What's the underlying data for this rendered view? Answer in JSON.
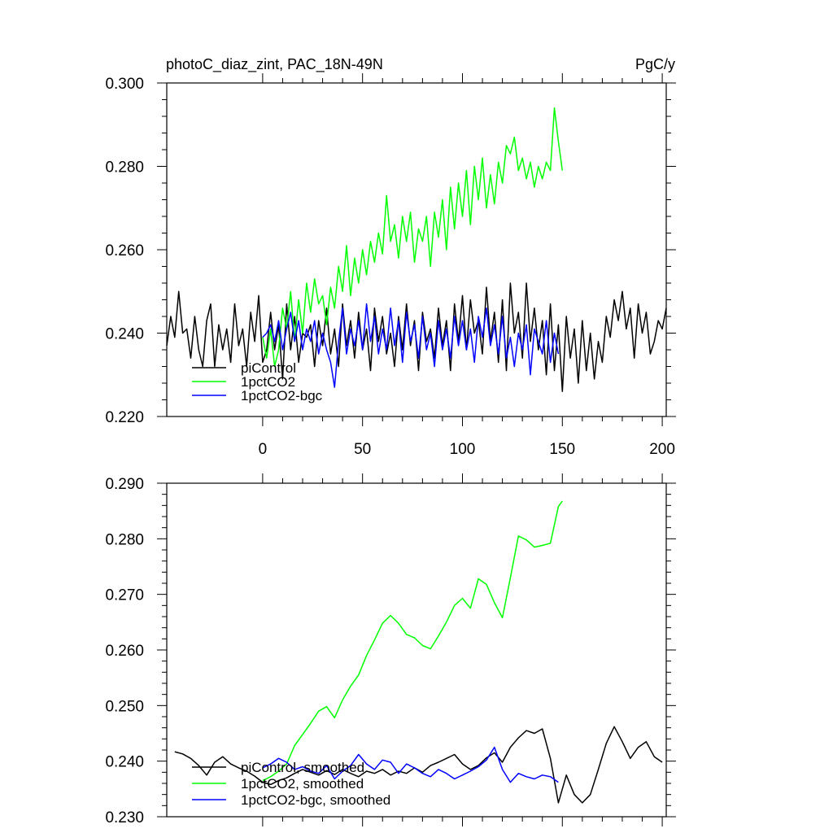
{
  "chart_data": [
    {
      "type": "line",
      "title": "photoC_diaz_zint, PAC_18N-49N",
      "units": "PgC/y",
      "xlim": [
        -48,
        202
      ],
      "ylim": [
        0.22,
        0.3
      ],
      "xticks": [
        0,
        50,
        100,
        150,
        200
      ],
      "xtick_labels": [
        "0",
        "50",
        "100",
        "150",
        "200"
      ],
      "yticks": [
        0.22,
        0.24,
        0.26,
        0.28,
        0.3
      ],
      "ytick_labels": [
        "0.220",
        "0.240",
        "0.260",
        "0.280",
        "0.300"
      ],
      "legend_position": "bottom-left",
      "series": [
        {
          "name": "piControl",
          "color": "#000000",
          "x": [
            -48,
            -46,
            -44,
            -42,
            -40,
            -38,
            -36,
            -34,
            -32,
            -30,
            -28,
            -26,
            -24,
            -22,
            -20,
            -18,
            -16,
            -14,
            -12,
            -10,
            -8,
            -6,
            -4,
            -2,
            0,
            2,
            4,
            6,
            8,
            10,
            12,
            14,
            16,
            18,
            20,
            22,
            24,
            26,
            28,
            30,
            32,
            34,
            36,
            38,
            40,
            42,
            44,
            46,
            48,
            50,
            52,
            54,
            56,
            58,
            60,
            62,
            64,
            66,
            68,
            70,
            72,
            74,
            76,
            78,
            80,
            82,
            84,
            86,
            88,
            90,
            92,
            94,
            96,
            98,
            100,
            102,
            104,
            106,
            108,
            110,
            112,
            114,
            116,
            118,
            120,
            122,
            124,
            126,
            128,
            130,
            132,
            134,
            136,
            138,
            140,
            142,
            144,
            146,
            148,
            150,
            152,
            154,
            156,
            158,
            160,
            162,
            164,
            166,
            168,
            170,
            172,
            174,
            176,
            178,
            180,
            182,
            184,
            186,
            188,
            190,
            192,
            194,
            196,
            198,
            200,
            202
          ],
          "y": [
            0.237,
            0.244,
            0.239,
            0.25,
            0.24,
            0.241,
            0.234,
            0.244,
            0.236,
            0.232,
            0.243,
            0.247,
            0.232,
            0.242,
            0.236,
            0.241,
            0.233,
            0.247,
            0.237,
            0.241,
            0.232,
            0.245,
            0.238,
            0.249,
            0.233,
            0.236,
            0.245,
            0.236,
            0.242,
            0.229,
            0.247,
            0.236,
            0.244,
            0.233,
            0.24,
            0.239,
            0.242,
            0.232,
            0.243,
            0.237,
            0.246,
            0.235,
            0.241,
            0.232,
            0.247,
            0.237,
            0.243,
            0.234,
            0.245,
            0.236,
            0.241,
            0.231,
            0.246,
            0.238,
            0.244,
            0.235,
            0.24,
            0.232,
            0.244,
            0.236,
            0.247,
            0.237,
            0.243,
            0.231,
            0.245,
            0.238,
            0.241,
            0.234,
            0.246,
            0.237,
            0.243,
            0.231,
            0.247,
            0.238,
            0.249,
            0.236,
            0.248,
            0.24,
            0.243,
            0.235,
            0.251,
            0.238,
            0.245,
            0.233,
            0.248,
            0.231,
            0.252,
            0.24,
            0.245,
            0.234,
            0.252,
            0.238,
            0.246,
            0.236,
            0.243,
            0.23,
            0.247,
            0.231,
            0.242,
            0.226,
            0.244,
            0.234,
            0.241,
            0.228,
            0.243,
            0.231,
            0.24,
            0.229,
            0.238,
            0.233,
            0.244,
            0.239,
            0.248,
            0.243,
            0.25,
            0.241,
            0.246,
            0.234,
            0.247,
            0.24,
            0.245,
            0.235,
            0.238,
            0.243,
            0.241,
            0.246
          ]
        },
        {
          "name": "1pctCO2",
          "color": "#00ff00",
          "x": [
            0,
            2,
            4,
            6,
            8,
            10,
            12,
            14,
            16,
            18,
            20,
            22,
            24,
            26,
            28,
            30,
            32,
            34,
            36,
            38,
            40,
            42,
            44,
            46,
            48,
            50,
            52,
            54,
            56,
            58,
            60,
            62,
            64,
            66,
            68,
            70,
            72,
            74,
            76,
            78,
            80,
            82,
            84,
            86,
            88,
            90,
            92,
            94,
            96,
            98,
            100,
            102,
            104,
            106,
            108,
            110,
            112,
            114,
            116,
            118,
            120,
            122,
            124,
            126,
            128,
            130,
            132,
            134,
            136,
            138,
            140,
            142,
            144,
            146,
            148,
            150
          ],
          "y": [
            0.239,
            0.234,
            0.241,
            0.232,
            0.236,
            0.246,
            0.241,
            0.25,
            0.238,
            0.248,
            0.24,
            0.252,
            0.245,
            0.253,
            0.247,
            0.249,
            0.242,
            0.251,
            0.246,
            0.256,
            0.25,
            0.261,
            0.249,
            0.258,
            0.252,
            0.26,
            0.254,
            0.262,
            0.257,
            0.264,
            0.259,
            0.273,
            0.262,
            0.266,
            0.258,
            0.268,
            0.262,
            0.269,
            0.257,
            0.265,
            0.262,
            0.268,
            0.256,
            0.269,
            0.263,
            0.272,
            0.26,
            0.275,
            0.265,
            0.276,
            0.268,
            0.279,
            0.266,
            0.28,
            0.272,
            0.282,
            0.27,
            0.278,
            0.271,
            0.281,
            0.276,
            0.285,
            0.283,
            0.287,
            0.279,
            0.282,
            0.277,
            0.281,
            0.275,
            0.28,
            0.277,
            0.281,
            0.279,
            0.294,
            0.286,
            0.279
          ]
        },
        {
          "name": "1pctCO2-bgc",
          "color": "#0000ff",
          "x": [
            0,
            2,
            4,
            6,
            8,
            10,
            12,
            14,
            16,
            18,
            20,
            22,
            24,
            26,
            28,
            30,
            32,
            34,
            36,
            38,
            40,
            42,
            44,
            46,
            48,
            50,
            52,
            54,
            56,
            58,
            60,
            62,
            64,
            66,
            68,
            70,
            72,
            74,
            76,
            78,
            80,
            82,
            84,
            86,
            88,
            90,
            92,
            94,
            96,
            98,
            100,
            102,
            104,
            106,
            108,
            110,
            112,
            114,
            116,
            118,
            120,
            122,
            124,
            126,
            128,
            130,
            132,
            134,
            136,
            138,
            140,
            142,
            144,
            146,
            148
          ],
          "y": [
            0.239,
            0.24,
            0.242,
            0.238,
            0.243,
            0.236,
            0.241,
            0.245,
            0.238,
            0.243,
            0.236,
            0.241,
            0.238,
            0.243,
            0.235,
            0.24,
            0.236,
            0.233,
            0.227,
            0.238,
            0.246,
            0.235,
            0.241,
            0.237,
            0.243,
            0.236,
            0.247,
            0.238,
            0.244,
            0.235,
            0.241,
            0.236,
            0.246,
            0.237,
            0.243,
            0.233,
            0.245,
            0.238,
            0.242,
            0.234,
            0.244,
            0.236,
            0.24,
            0.232,
            0.243,
            0.236,
            0.241,
            0.234,
            0.244,
            0.237,
            0.243,
            0.236,
            0.241,
            0.233,
            0.244,
            0.239,
            0.246,
            0.237,
            0.242,
            0.235,
            0.244,
            0.234,
            0.239,
            0.232,
            0.24,
            0.236,
            0.242,
            0.23,
            0.241,
            0.238,
            0.235,
            0.243,
            0.233,
            0.24,
            0.235
          ]
        }
      ]
    },
    {
      "type": "line",
      "title": "",
      "xlim": [
        -48,
        202
      ],
      "ylim": [
        0.23,
        0.29
      ],
      "yticks": [
        0.23,
        0.24,
        0.25,
        0.26,
        0.27,
        0.28,
        0.29
      ],
      "ytick_labels": [
        "0.230",
        "0.240",
        "0.250",
        "0.260",
        "0.270",
        "0.280",
        "0.290"
      ],
      "legend_position": "bottom-left",
      "series": [
        {
          "name": "piControl, smoothed",
          "color": "#000000",
          "x": [
            -44,
            -40,
            -36,
            -32,
            -28,
            -24,
            -20,
            -16,
            -12,
            -8,
            -4,
            0,
            4,
            8,
            12,
            16,
            20,
            24,
            28,
            32,
            36,
            40,
            44,
            48,
            52,
            56,
            60,
            64,
            68,
            72,
            76,
            80,
            84,
            88,
            92,
            96,
            100,
            104,
            108,
            112,
            116,
            120,
            124,
            128,
            132,
            136,
            140,
            144,
            148,
            152,
            156,
            160,
            164,
            168,
            172,
            176,
            180,
            184,
            188,
            192,
            196,
            200
          ],
          "y": [
            0.2417,
            0.2413,
            0.2405,
            0.2392,
            0.2375,
            0.2398,
            0.2408,
            0.2395,
            0.2388,
            0.2382,
            0.2373,
            0.2362,
            0.2358,
            0.2365,
            0.237,
            0.2378,
            0.2385,
            0.238,
            0.2375,
            0.2383,
            0.2376,
            0.2385,
            0.2378,
            0.2372,
            0.2382,
            0.2378,
            0.2385,
            0.2375,
            0.2382,
            0.2378,
            0.2388,
            0.238,
            0.2392,
            0.2398,
            0.2405,
            0.2412,
            0.2395,
            0.2385,
            0.2392,
            0.2406,
            0.2415,
            0.2398,
            0.2425,
            0.2442,
            0.2455,
            0.245,
            0.2458,
            0.2405,
            0.2325,
            0.2375,
            0.234,
            0.2325,
            0.234,
            0.2385,
            0.2432,
            0.2462,
            0.2435,
            0.2405,
            0.2425,
            0.2435,
            0.2408,
            0.2398
          ]
        },
        {
          "name": "1pctCO2, smoothed",
          "color": "#00ff00",
          "x": [
            0,
            4,
            8,
            12,
            16,
            20,
            24,
            28,
            32,
            36,
            40,
            44,
            48,
            52,
            56,
            60,
            64,
            68,
            72,
            76,
            80,
            84,
            88,
            92,
            96,
            100,
            104,
            108,
            112,
            116,
            120,
            124,
            128,
            132,
            136,
            140,
            144,
            148,
            150
          ],
          "y": [
            0.2365,
            0.2372,
            0.2382,
            0.2395,
            0.2428,
            0.2448,
            0.2468,
            0.249,
            0.2498,
            0.2478,
            0.251,
            0.2535,
            0.2555,
            0.259,
            0.2618,
            0.2648,
            0.2662,
            0.2648,
            0.2628,
            0.2622,
            0.2608,
            0.2602,
            0.2625,
            0.265,
            0.268,
            0.2693,
            0.2675,
            0.2728,
            0.2718,
            0.2685,
            0.2658,
            0.273,
            0.2805,
            0.2798,
            0.2785,
            0.2788,
            0.2792,
            0.2858,
            0.2868
          ]
        },
        {
          "name": "1pctCO2-bgc, smoothed",
          "color": "#0000ff",
          "x": [
            0,
            4,
            8,
            12,
            16,
            20,
            24,
            28,
            32,
            36,
            40,
            44,
            48,
            52,
            56,
            60,
            64,
            68,
            72,
            76,
            80,
            84,
            88,
            92,
            96,
            100,
            104,
            108,
            112,
            116,
            120,
            124,
            128,
            132,
            136,
            140,
            144,
            148
          ],
          "y": [
            0.2388,
            0.2395,
            0.2405,
            0.2398,
            0.2385,
            0.239,
            0.2382,
            0.2378,
            0.2392,
            0.2368,
            0.2382,
            0.2392,
            0.2412,
            0.2395,
            0.2385,
            0.2402,
            0.2398,
            0.2378,
            0.2395,
            0.2388,
            0.2378,
            0.2372,
            0.2385,
            0.2378,
            0.2368,
            0.2375,
            0.2382,
            0.239,
            0.2402,
            0.2425,
            0.2385,
            0.2362,
            0.2378,
            0.2372,
            0.2368,
            0.2375,
            0.2372,
            0.2362
          ]
        }
      ]
    }
  ]
}
